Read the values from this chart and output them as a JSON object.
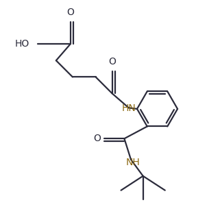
{
  "bg_color": "#ffffff",
  "line_color": "#2b2b3b",
  "hn_color": "#8B6914",
  "bond_lw": 1.6,
  "font_size": 10,
  "fig_size": [
    3.21,
    3.21
  ],
  "dpi": 100,
  "xlim": [
    0,
    10
  ],
  "ylim": [
    0,
    10
  ]
}
